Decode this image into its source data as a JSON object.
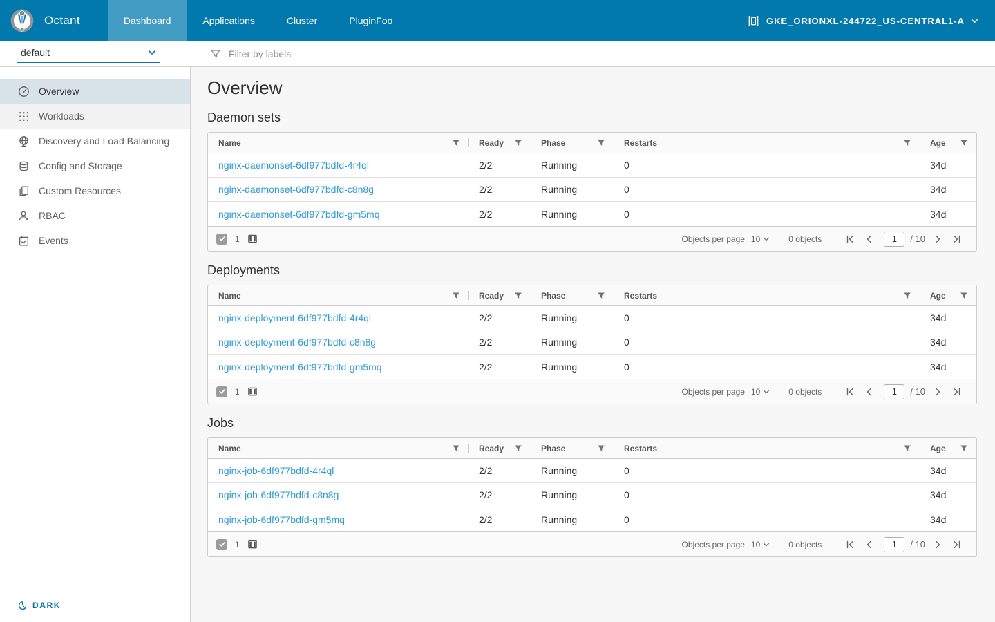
{
  "colors": {
    "navbar_bg": "#0179ad",
    "navbar_active_tab_bg": "#3f91b8",
    "accent_blue": "#0072a3",
    "link_blue": "#2f9cd4",
    "active_nav_bg": "#d8e3e9",
    "content_bg": "#f7f7f7",
    "table_border": "#cccccc"
  },
  "header": {
    "brand": "Octant",
    "tabs": [
      {
        "label": "Dashboard",
        "active": true
      },
      {
        "label": "Applications",
        "active": false
      },
      {
        "label": "Cluster",
        "active": false
      },
      {
        "label": "PluginFoo",
        "active": false
      }
    ],
    "context": {
      "label": "GKE_ORIONXL-244722_US-CENTRAL1-A",
      "icon": "cluster-icon"
    }
  },
  "sidebar": {
    "namespace": "default",
    "items": [
      {
        "label": "Overview",
        "icon": "dashboard-icon",
        "active": true,
        "highlighted": false
      },
      {
        "label": "Workloads",
        "icon": "applications-grid-icon",
        "active": false,
        "highlighted": true
      },
      {
        "label": "Discovery and Load Balancing",
        "icon": "network-globe-icon",
        "active": false,
        "highlighted": false
      },
      {
        "label": "Config and Storage",
        "icon": "storage-icon",
        "active": false,
        "highlighted": false
      },
      {
        "label": "Custom Resources",
        "icon": "copy-icon",
        "active": false,
        "highlighted": false
      },
      {
        "label": "RBAC",
        "icon": "user-icon",
        "active": false,
        "highlighted": false
      },
      {
        "label": "Events",
        "icon": "event-icon",
        "active": false,
        "highlighted": false
      }
    ],
    "theme_toggle_label": "DARK"
  },
  "filter_bar": {
    "placeholder": "Filter by labels"
  },
  "page": {
    "title": "Overview"
  },
  "tables": [
    {
      "section_title": "Daemon sets",
      "columns": [
        "Name",
        "Ready",
        "Phase",
        "Restarts",
        "Age"
      ],
      "rows": [
        {
          "name": "nginx-daemonset-6df977bdfd-4r4ql",
          "ready": "2/2",
          "phase": "Running",
          "restarts": "0",
          "age": "34d"
        },
        {
          "name": "nginx-daemonset-6df977bdfd-c8n8g",
          "ready": "2/2",
          "phase": "Running",
          "restarts": "0",
          "age": "34d"
        },
        {
          "name": "nginx-daemonset-6df977bdfd-gm5mq",
          "ready": "2/2",
          "phase": "Running",
          "restarts": "0",
          "age": "34d"
        }
      ],
      "footer": {
        "selected_count": "1",
        "objects_per_page_label": "Objects per page",
        "objects_per_page": "10",
        "objects_count": "0 objects",
        "page": "1",
        "total_pages": "/ 10"
      }
    },
    {
      "section_title": "Deployments",
      "columns": [
        "Name",
        "Ready",
        "Phase",
        "Restarts",
        "Age"
      ],
      "rows": [
        {
          "name": "nginx-deployment-6df977bdfd-4r4ql",
          "ready": "2/2",
          "phase": "Running",
          "restarts": "0",
          "age": "34d"
        },
        {
          "name": "nginx-deployment-6df977bdfd-c8n8g",
          "ready": "2/2",
          "phase": "Running",
          "restarts": "0",
          "age": "34d"
        },
        {
          "name": "nginx-deployment-6df977bdfd-gm5mq",
          "ready": "2/2",
          "phase": "Running",
          "restarts": "0",
          "age": "34d"
        }
      ],
      "footer": {
        "selected_count": "1",
        "objects_per_page_label": "Objects per page",
        "objects_per_page": "10",
        "objects_count": "0 objects",
        "page": "1",
        "total_pages": "/ 10"
      }
    },
    {
      "section_title": "Jobs",
      "columns": [
        "Name",
        "Ready",
        "Phase",
        "Restarts",
        "Age"
      ],
      "rows": [
        {
          "name": "nginx-job-6df977bdfd-4r4ql",
          "ready": "2/2",
          "phase": "Running",
          "restarts": "0",
          "age": "34d"
        },
        {
          "name": "nginx-job-6df977bdfd-c8n8g",
          "ready": "2/2",
          "phase": "Running",
          "restarts": "0",
          "age": "34d"
        },
        {
          "name": "nginx-job-6df977bdfd-gm5mq",
          "ready": "2/2",
          "phase": "Running",
          "restarts": "0",
          "age": "34d"
        }
      ],
      "footer": {
        "selected_count": "1",
        "objects_per_page_label": "Objects per page",
        "objects_per_page": "10",
        "objects_count": "0 objects",
        "page": "1",
        "total_pages": "/ 10"
      }
    }
  ]
}
